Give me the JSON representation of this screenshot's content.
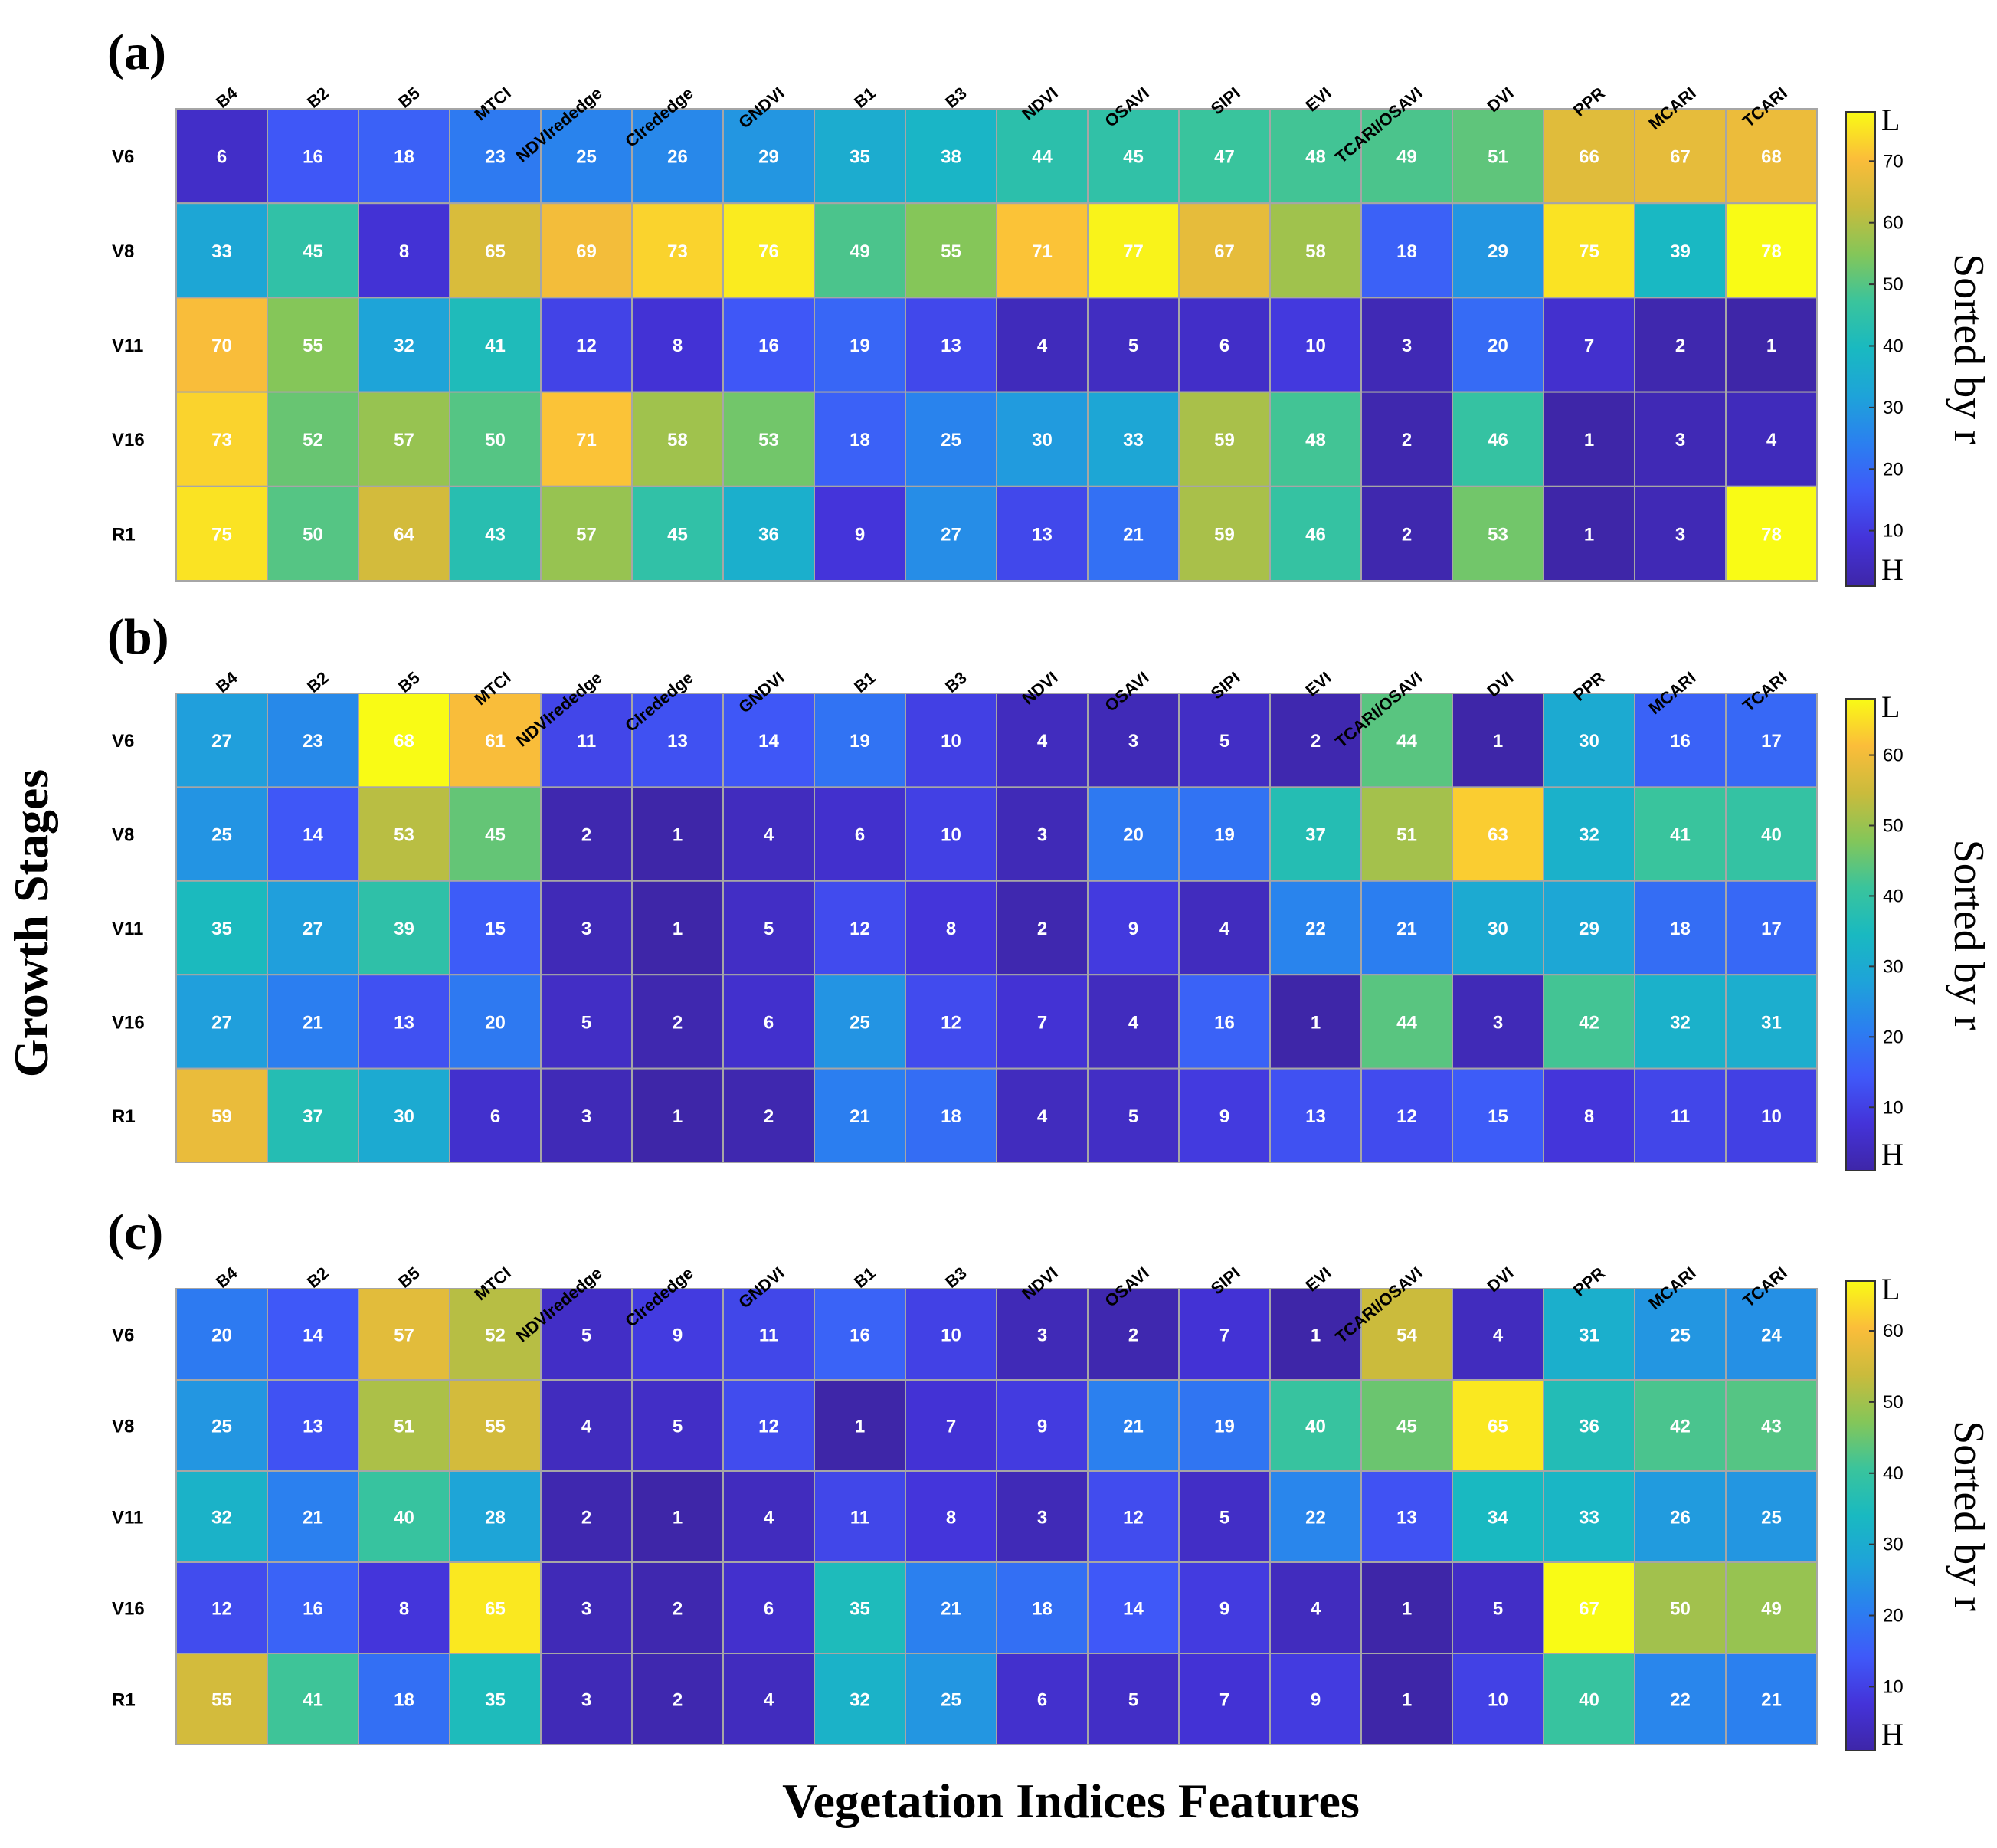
{
  "chart_data": {
    "type": "heatmap",
    "xlabel": "Vegetation Indices Features",
    "ylabel": "Growth Stages",
    "columns": [
      "B4",
      "B2",
      "B5",
      "MTCI",
      "NDVIrededge",
      "CIrededge",
      "GNDVI",
      "B1",
      "B3",
      "NDVI",
      "OSAVI",
      "SIPI",
      "EVI",
      "TCARI/OSAVI",
      "DVI",
      "PPR",
      "MCARI",
      "TCARI"
    ],
    "rows": [
      "V6",
      "V8",
      "V11",
      "V16",
      "R1"
    ],
    "panels": [
      {
        "label": "(a)",
        "colorbar_title": "Sorted by r",
        "colorbar_high_label": "L",
        "colorbar_low_label": "H",
        "colorbar_range": [
          1,
          78
        ],
        "colorbar_ticks": [
          10,
          20,
          30,
          40,
          50,
          60,
          70
        ],
        "values": [
          [
            6,
            16,
            18,
            23,
            25,
            26,
            29,
            35,
            38,
            44,
            45,
            47,
            48,
            49,
            51,
            66,
            67,
            68
          ],
          [
            33,
            45,
            8,
            65,
            69,
            73,
            76,
            49,
            55,
            71,
            77,
            67,
            58,
            18,
            29,
            75,
            39,
            78
          ],
          [
            70,
            55,
            32,
            41,
            12,
            8,
            16,
            19,
            13,
            4,
            5,
            6,
            10,
            3,
            20,
            7,
            2,
            1
          ],
          [
            73,
            52,
            57,
            50,
            71,
            58,
            53,
            18,
            25,
            30,
            33,
            59,
            48,
            2,
            46,
            1,
            3,
            4
          ],
          [
            75,
            50,
            64,
            43,
            57,
            45,
            36,
            9,
            27,
            13,
            21,
            59,
            46,
            2,
            53,
            1,
            3,
            78
          ]
        ]
      },
      {
        "label": "(b)",
        "colorbar_title": "Sorted by r",
        "colorbar_high_label": "L",
        "colorbar_low_label": "H",
        "colorbar_range": [
          1,
          68
        ],
        "colorbar_ticks": [
          10,
          20,
          30,
          40,
          50,
          60
        ],
        "values": [
          [
            27,
            23,
            68,
            61,
            11,
            13,
            14,
            19,
            10,
            4,
            3,
            5,
            2,
            44,
            1,
            30,
            16,
            17
          ],
          [
            25,
            14,
            53,
            45,
            2,
            1,
            4,
            6,
            10,
            3,
            20,
            19,
            37,
            51,
            63,
            32,
            41,
            40
          ],
          [
            35,
            27,
            39,
            15,
            3,
            1,
            5,
            12,
            8,
            2,
            9,
            4,
            22,
            21,
            30,
            29,
            18,
            17
          ],
          [
            27,
            21,
            13,
            20,
            5,
            2,
            6,
            25,
            12,
            7,
            4,
            16,
            1,
            44,
            3,
            42,
            32,
            31
          ],
          [
            59,
            37,
            30,
            6,
            3,
            1,
            2,
            21,
            18,
            4,
            5,
            9,
            13,
            12,
            15,
            8,
            11,
            10
          ]
        ]
      },
      {
        "label": "(c)",
        "colorbar_title": "Sorted by r",
        "colorbar_high_label": "L",
        "colorbar_low_label": "H",
        "colorbar_range": [
          1,
          67
        ],
        "colorbar_ticks": [
          10,
          20,
          30,
          40,
          50,
          60
        ],
        "values": [
          [
            20,
            14,
            57,
            52,
            5,
            9,
            11,
            16,
            10,
            3,
            2,
            7,
            1,
            54,
            4,
            31,
            25,
            24
          ],
          [
            25,
            13,
            51,
            55,
            4,
            5,
            12,
            1,
            7,
            9,
            21,
            19,
            40,
            45,
            65,
            36,
            42,
            43
          ],
          [
            32,
            21,
            40,
            28,
            2,
            1,
            4,
            11,
            8,
            3,
            12,
            5,
            22,
            13,
            34,
            33,
            26,
            25
          ],
          [
            12,
            16,
            8,
            65,
            3,
            2,
            6,
            35,
            21,
            18,
            14,
            9,
            4,
            1,
            5,
            67,
            50,
            49
          ],
          [
            55,
            41,
            18,
            35,
            3,
            2,
            4,
            32,
            25,
            6,
            5,
            7,
            9,
            1,
            10,
            40,
            22,
            21
          ]
        ]
      }
    ]
  }
}
